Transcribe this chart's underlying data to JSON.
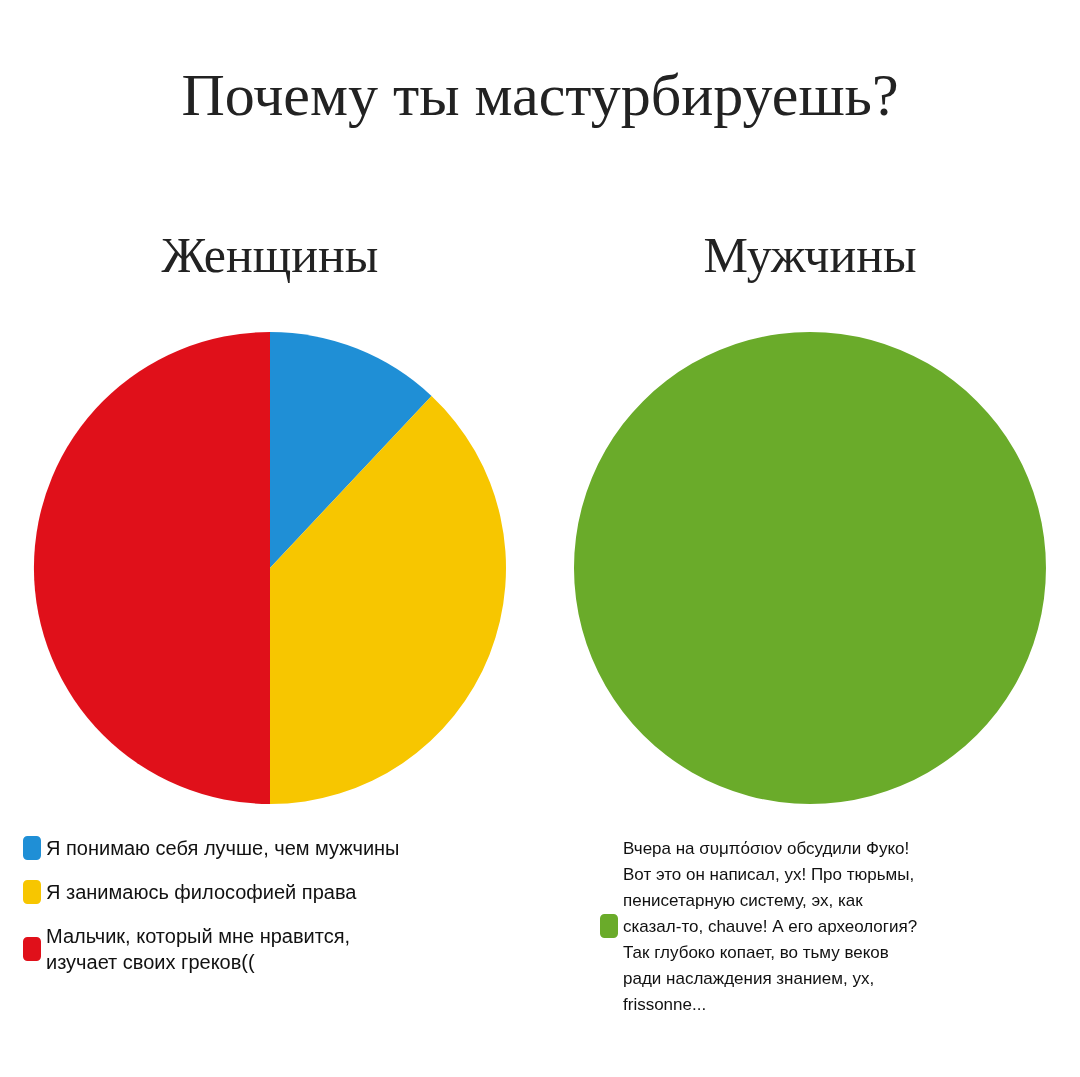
{
  "chart_data": [
    {
      "type": "pie",
      "title": "Женщины",
      "annotations": [
        "Почему ты мастурбируешь?"
      ],
      "categories": [
        "Я понимаю себя лучше, чем мужчины",
        "Я занимаюсь философией права",
        "Мальчик, который мне нравится,\nизучает своих греков(("
      ],
      "values": [
        12,
        38,
        50
      ],
      "colors": [
        "#1f8fd6",
        "#f7c600",
        "#e0101a"
      ],
      "legend": "bottom"
    },
    {
      "type": "pie",
      "title": "Мужчины",
      "categories": [
        "Вчера на συμπόσιον обсудили Фуко!\nВот это он написал, ух! Про тюрьмы,\nпенисетарную систему, эх, как\nсказал-то, chauve! А его археология?\nТак глубоко копает, во тьму веков\nради наслаждения знанием, ух,\nfrissonne..."
      ],
      "values": [
        100
      ],
      "colors": [
        "#6aab2a"
      ],
      "legend": "bottom"
    }
  ]
}
